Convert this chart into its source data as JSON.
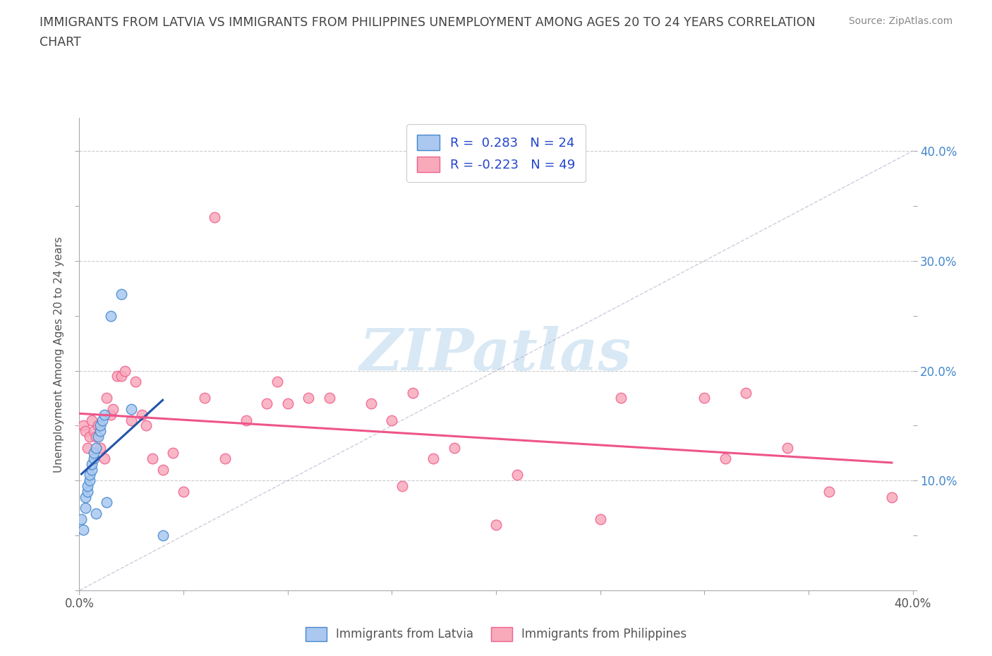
{
  "title_line1": "IMMIGRANTS FROM LATVIA VS IMMIGRANTS FROM PHILIPPINES UNEMPLOYMENT AMONG AGES 20 TO 24 YEARS CORRELATION",
  "title_line2": "CHART",
  "source_text": "Source: ZipAtlas.com",
  "ylabel": "Unemployment Among Ages 20 to 24 years",
  "xlim": [
    0.0,
    0.4
  ],
  "ylim": [
    0.0,
    0.43
  ],
  "xticks": [
    0.0,
    0.05,
    0.1,
    0.15,
    0.2,
    0.25,
    0.3,
    0.35,
    0.4
  ],
  "yticks": [
    0.0,
    0.05,
    0.1,
    0.15,
    0.2,
    0.25,
    0.3,
    0.35,
    0.4
  ],
  "legend_label1": "Immigrants from Latvia",
  "legend_label2": "Immigrants from Philippines",
  "watermark": "ZIPatlas",
  "latvia_color": "#aac8f0",
  "philippines_color": "#f8aabb",
  "latvia_edge_color": "#4488cc",
  "philippines_edge_color": "#f06090",
  "latvia_line_color": "#2255aa",
  "philippines_line_color": "#ee5588",
  "background_color": "#ffffff",
  "grid_color": "#cccccc",
  "title_color": "#444444",
  "right_axis_color": "#4488cc",
  "watermark_color": "#d8e8f4",
  "latvia_x": [
    0.001,
    0.002,
    0.003,
    0.003,
    0.004,
    0.004,
    0.005,
    0.005,
    0.006,
    0.006,
    0.007,
    0.007,
    0.008,
    0.008,
    0.009,
    0.01,
    0.01,
    0.011,
    0.012,
    0.013,
    0.015,
    0.02,
    0.025,
    0.04
  ],
  "latvia_y": [
    0.065,
    0.055,
    0.075,
    0.085,
    0.09,
    0.095,
    0.1,
    0.105,
    0.11,
    0.115,
    0.12,
    0.125,
    0.13,
    0.07,
    0.14,
    0.145,
    0.15,
    0.155,
    0.16,
    0.08,
    0.25,
    0.27,
    0.165,
    0.05
  ],
  "philippines_x": [
    0.002,
    0.003,
    0.004,
    0.005,
    0.006,
    0.007,
    0.008,
    0.009,
    0.01,
    0.012,
    0.013,
    0.015,
    0.016,
    0.018,
    0.02,
    0.022,
    0.025,
    0.027,
    0.03,
    0.032,
    0.035,
    0.04,
    0.045,
    0.05,
    0.06,
    0.065,
    0.07,
    0.08,
    0.09,
    0.095,
    0.1,
    0.11,
    0.12,
    0.14,
    0.15,
    0.155,
    0.16,
    0.17,
    0.18,
    0.2,
    0.21,
    0.25,
    0.26,
    0.3,
    0.31,
    0.32,
    0.34,
    0.36,
    0.39
  ],
  "philippines_y": [
    0.15,
    0.145,
    0.13,
    0.14,
    0.155,
    0.145,
    0.14,
    0.15,
    0.13,
    0.12,
    0.175,
    0.16,
    0.165,
    0.195,
    0.195,
    0.2,
    0.155,
    0.19,
    0.16,
    0.15,
    0.12,
    0.11,
    0.125,
    0.09,
    0.175,
    0.34,
    0.12,
    0.155,
    0.17,
    0.19,
    0.17,
    0.175,
    0.175,
    0.17,
    0.155,
    0.095,
    0.18,
    0.12,
    0.13,
    0.06,
    0.105,
    0.065,
    0.175,
    0.175,
    0.12,
    0.18,
    0.13,
    0.09,
    0.085
  ]
}
